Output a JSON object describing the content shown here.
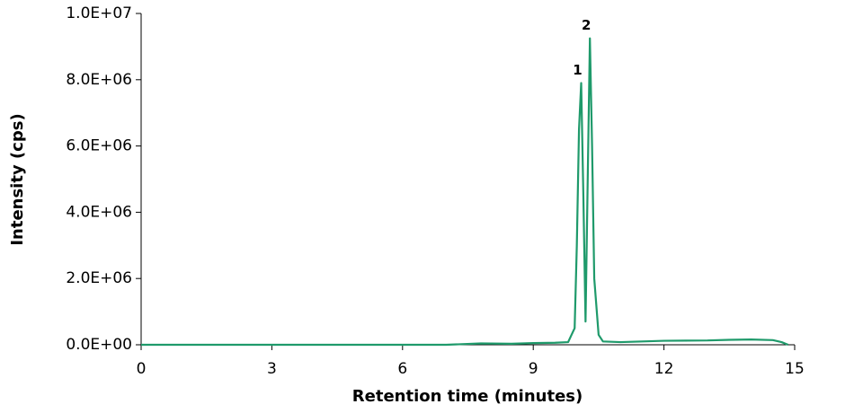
{
  "chart_data": {
    "type": "line",
    "x_label": "Retention time (minutes)",
    "y_label": "Intensity (cps)",
    "x": [
      0,
      7,
      7.8,
      8.5,
      9,
      9.5,
      9.8,
      9.95,
      10.0,
      10.05,
      10.1,
      10.15,
      10.2,
      10.25,
      10.3,
      10.35,
      10.4,
      10.5,
      10.6,
      11,
      12,
      13,
      13.5,
      14,
      14.5,
      14.7,
      14.85
    ],
    "series": [
      {
        "name": "Intensity",
        "color": "#1f9a6b",
        "values": [
          0,
          0,
          40000,
          30000,
          50000,
          60000,
          80000,
          500000,
          3000000,
          6500000,
          7900000,
          4500000,
          700000,
          5000000,
          9250000,
          6000000,
          2000000,
          300000,
          100000,
          80000,
          120000,
          130000,
          150000,
          160000,
          140000,
          80000,
          0
        ]
      }
    ],
    "peak_labels": [
      "1",
      "2"
    ],
    "xlim": [
      0,
      15
    ],
    "xticks": [
      0,
      3,
      6,
      9,
      12,
      15
    ],
    "ylim": [
      0,
      10000000
    ],
    "yticks": [
      {
        "value": 0,
        "label": "0.0E+00"
      },
      {
        "value": 2000000,
        "label": "2.0E+06"
      },
      {
        "value": 4000000,
        "label": "4.0E+06"
      },
      {
        "value": 6000000,
        "label": "6.0E+06"
      },
      {
        "value": 8000000,
        "label": "8.0E+06"
      },
      {
        "value": 10000000,
        "label": "1.0E+07"
      }
    ],
    "grid": false
  }
}
